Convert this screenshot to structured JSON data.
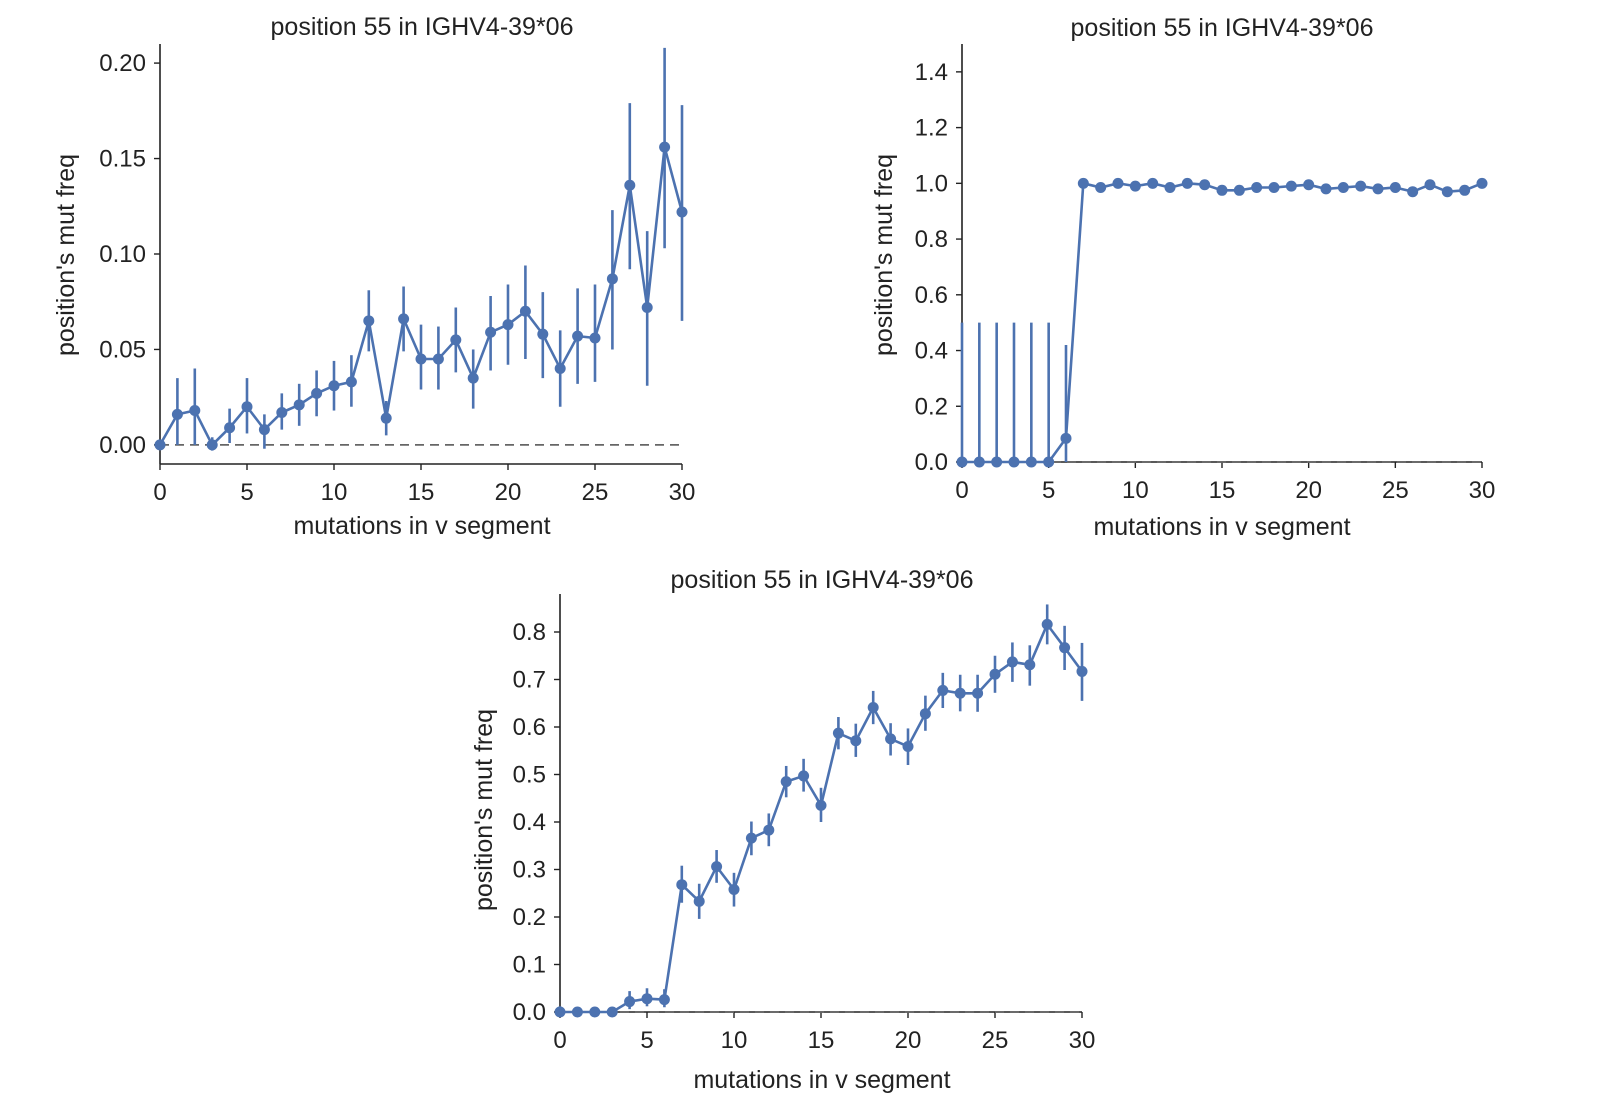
{
  "colors": {
    "series": "#4c72b0",
    "zero_line": "#666666",
    "axis": "#222222"
  },
  "chart_data": [
    {
      "type": "line",
      "title": "position 55 in IGHV4-39*06",
      "xlabel": "mutations in v segment",
      "ylabel": "position's mut freq",
      "xlim": [
        0,
        30
      ],
      "ylim": [
        -0.01,
        0.21
      ],
      "xticks": [
        0,
        5,
        10,
        15,
        20,
        25,
        30
      ],
      "xtick_labels": [
        "0",
        "5",
        "10",
        "15",
        "20",
        "25",
        "30"
      ],
      "yticks": [
        0,
        0.05,
        0.1,
        0.15,
        0.2
      ],
      "ytick_labels": [
        "0.00",
        "0.05",
        "0.10",
        "0.15",
        "0.20"
      ],
      "zero_line": true,
      "series": [
        {
          "name": "mut freq",
          "x": [
            0,
            1,
            2,
            3,
            4,
            5,
            6,
            7,
            8,
            9,
            10,
            11,
            12,
            13,
            14,
            15,
            16,
            17,
            18,
            19,
            20,
            21,
            22,
            23,
            24,
            25,
            26,
            27,
            28,
            29,
            30
          ],
          "y": [
            0.0,
            0.016,
            0.018,
            0.0,
            0.009,
            0.02,
            0.008,
            0.017,
            0.021,
            0.027,
            0.031,
            0.033,
            0.065,
            0.014,
            0.066,
            0.045,
            0.045,
            0.055,
            0.035,
            0.059,
            0.063,
            0.07,
            0.058,
            0.04,
            0.057,
            0.056,
            0.087,
            0.136,
            0.072,
            0.156,
            0.122
          ],
          "err_low": [
            0.0,
            0.0,
            0.0,
            -0.003,
            0.001,
            0.006,
            -0.002,
            0.008,
            0.01,
            0.015,
            0.018,
            0.02,
            0.049,
            0.005,
            0.049,
            0.029,
            0.029,
            0.038,
            0.019,
            0.039,
            0.042,
            0.045,
            0.035,
            0.02,
            0.032,
            0.033,
            0.05,
            0.092,
            0.031,
            0.103,
            0.065
          ],
          "err_high": [
            0.001,
            0.035,
            0.04,
            0.004,
            0.019,
            0.035,
            0.016,
            0.027,
            0.032,
            0.039,
            0.044,
            0.047,
            0.081,
            0.023,
            0.083,
            0.063,
            0.062,
            0.072,
            0.05,
            0.078,
            0.084,
            0.094,
            0.08,
            0.06,
            0.082,
            0.084,
            0.123,
            0.179,
            0.112,
            0.208,
            0.178
          ]
        }
      ]
    },
    {
      "type": "line",
      "title": "position 55 in IGHV4-39*06",
      "xlabel": "mutations in v segment",
      "ylabel": "position's mut freq",
      "xlim": [
        0,
        30
      ],
      "ylim": [
        0,
        1.5
      ],
      "xticks": [
        0,
        5,
        10,
        15,
        20,
        25,
        30
      ],
      "xtick_labels": [
        "0",
        "5",
        "10",
        "15",
        "20",
        "25",
        "30"
      ],
      "yticks": [
        0,
        0.2,
        0.4,
        0.6,
        0.8,
        1.0,
        1.2,
        1.4
      ],
      "ytick_labels": [
        "0.0",
        "0.2",
        "0.4",
        "0.6",
        "0.8",
        "1.0",
        "1.2",
        "1.4"
      ],
      "zero_line": true,
      "series": [
        {
          "name": "mut freq",
          "x": [
            0,
            1,
            2,
            3,
            4,
            5,
            6,
            7,
            8,
            9,
            10,
            11,
            12,
            13,
            14,
            15,
            16,
            17,
            18,
            19,
            20,
            21,
            22,
            23,
            24,
            25,
            26,
            27,
            28,
            29,
            30
          ],
          "y": [
            0.0,
            0.0,
            0.0,
            0.0,
            0.0,
            0.0,
            0.085,
            1.0,
            0.985,
            1.0,
            0.99,
            1.0,
            0.985,
            1.0,
            0.995,
            0.975,
            0.975,
            0.985,
            0.985,
            0.99,
            0.995,
            0.98,
            0.985,
            0.99,
            0.98,
            0.985,
            0.97,
            0.995,
            0.97,
            0.975,
            1.0
          ],
          "err_low": [
            0.0,
            0.0,
            0.0,
            0.0,
            0.0,
            0.0,
            0.0,
            1.0,
            0.98,
            1.0,
            0.985,
            1.0,
            0.98,
            1.0,
            0.99,
            0.97,
            0.97,
            0.98,
            0.98,
            0.985,
            0.99,
            0.975,
            0.98,
            0.985,
            0.975,
            0.98,
            0.965,
            0.99,
            0.965,
            0.97,
            1.0
          ],
          "err_high": [
            0.5,
            0.5,
            0.5,
            0.5,
            0.5,
            0.5,
            0.42,
            1.0,
            0.99,
            1.0,
            0.995,
            1.0,
            0.99,
            1.0,
            1.0,
            0.98,
            0.98,
            0.99,
            0.99,
            0.995,
            1.0,
            0.985,
            0.99,
            0.995,
            0.985,
            0.99,
            0.975,
            1.0,
            0.975,
            0.98,
            1.0
          ]
        }
      ]
    },
    {
      "type": "line",
      "title": "position 55 in IGHV4-39*06",
      "xlabel": "mutations in v segment",
      "ylabel": "position's mut freq",
      "xlim": [
        0,
        30
      ],
      "ylim": [
        0,
        0.88
      ],
      "xticks": [
        0,
        5,
        10,
        15,
        20,
        25,
        30
      ],
      "xtick_labels": [
        "0",
        "5",
        "10",
        "15",
        "20",
        "25",
        "30"
      ],
      "yticks": [
        0,
        0.1,
        0.2,
        0.3,
        0.4,
        0.5,
        0.6,
        0.7,
        0.8
      ],
      "ytick_labels": [
        "0.0",
        "0.1",
        "0.2",
        "0.3",
        "0.4",
        "0.5",
        "0.6",
        "0.7",
        "0.8"
      ],
      "zero_line": true,
      "series": [
        {
          "name": "mut freq",
          "x": [
            0,
            1,
            2,
            3,
            4,
            5,
            6,
            7,
            8,
            9,
            10,
            11,
            12,
            13,
            14,
            15,
            16,
            17,
            18,
            19,
            20,
            21,
            22,
            23,
            24,
            25,
            26,
            27,
            28,
            29,
            30
          ],
          "y": [
            0.0,
            0.0,
            0.0,
            0.0,
            0.022,
            0.028,
            0.026,
            0.268,
            0.233,
            0.306,
            0.258,
            0.366,
            0.383,
            0.485,
            0.497,
            0.435,
            0.587,
            0.571,
            0.641,
            0.575,
            0.559,
            0.628,
            0.677,
            0.671,
            0.671,
            0.711,
            0.737,
            0.731,
            0.816,
            0.767,
            0.717
          ],
          "err_low": [
            0.0,
            0.0,
            0.0,
            0.0,
            0.006,
            0.012,
            0.01,
            0.23,
            0.196,
            0.272,
            0.222,
            0.33,
            0.349,
            0.452,
            0.464,
            0.4,
            0.553,
            0.537,
            0.606,
            0.54,
            0.52,
            0.592,
            0.64,
            0.633,
            0.632,
            0.672,
            0.695,
            0.687,
            0.774,
            0.72,
            0.655
          ],
          "err_high": [
            0.012,
            0.006,
            0.006,
            0.01,
            0.044,
            0.05,
            0.048,
            0.308,
            0.27,
            0.341,
            0.293,
            0.401,
            0.418,
            0.518,
            0.533,
            0.472,
            0.621,
            0.607,
            0.676,
            0.608,
            0.597,
            0.666,
            0.714,
            0.71,
            0.71,
            0.75,
            0.778,
            0.772,
            0.858,
            0.813,
            0.777
          ]
        }
      ]
    }
  ]
}
